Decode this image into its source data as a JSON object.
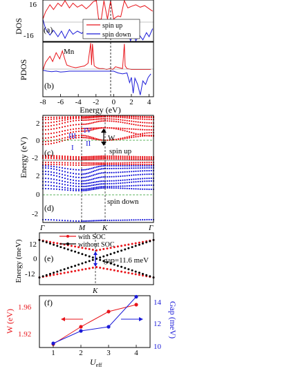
{
  "colors": {
    "red": "#e8141a",
    "blue": "#1a1ad8",
    "black": "#000000",
    "green": "#2a9a2a"
  },
  "panels": {
    "a": {
      "label": "(a)",
      "ylabel": "DOS",
      "ytick_top": "16",
      "ytick_bottom": "-16",
      "legend": [
        "spin up",
        "spin down"
      ]
    },
    "b": {
      "label": "(b)",
      "ylabel": "PDOS",
      "annotation": "Mn",
      "xlabel": "Energy (eV)",
      "xticks": [
        "-8",
        "-6",
        "-4",
        "-2",
        "0",
        "2",
        "4"
      ]
    },
    "c": {
      "label": "(c)",
      "spin_label": "spin up",
      "yticks": [
        "2",
        "0",
        "-2"
      ],
      "roman": [
        "IV",
        "III",
        "II",
        "I"
      ],
      "width_label": "W"
    },
    "d": {
      "label": "(d)",
      "spin_label": "spin down",
      "yticks": [
        "2",
        "0",
        "-2"
      ]
    },
    "cd": {
      "ylabel": "Energy (eV)",
      "kpoints": [
        "Γ",
        "M",
        "K",
        "Γ"
      ]
    },
    "e": {
      "label": "(e)",
      "ylabel": "Energy (meV)",
      "yticks": [
        "12",
        "0",
        "-12"
      ],
      "legend": [
        "with SOC",
        "without SOC"
      ],
      "gap_label": "gap=11.6 meV",
      "kpoint": "K"
    },
    "f": {
      "label": "(f)",
      "ylabel_left": "W (eV)",
      "ylabel_right": "Gap (meV)",
      "xlabel_main": "U",
      "xlabel_sub": "eff",
      "yticks_left": [
        "1.96",
        "1.92"
      ],
      "yticks_right": [
        "14",
        "12",
        "10"
      ],
      "xticks": [
        "1",
        "2",
        "3",
        "4"
      ]
    }
  },
  "chart_data": [
    {
      "type": "line",
      "panel": "a",
      "title": "",
      "xlim": [
        -8,
        4.5
      ],
      "ylim": [
        -28,
        24
      ],
      "series": [
        {
          "name": "spin up",
          "x": [
            -8,
            -7.7,
            -7.2,
            -6.8,
            -6.3,
            -5.9,
            -5.5,
            -5.0,
            -4.6,
            -4.1,
            -3.6,
            -3.1,
            -2.7,
            -2.3,
            -1.95,
            -1.7,
            -1.4,
            -1.1,
            -0.7,
            -0.35,
            -0.1,
            0,
            0.2,
            0.5,
            0.8,
            1.2,
            1.6,
            2.0,
            2.5,
            3.0,
            3.5,
            4.0,
            4.4
          ],
          "y": [
            0,
            9,
            18,
            12,
            20,
            16,
            24,
            14,
            20,
            15,
            18,
            13,
            17,
            22,
            30,
            0,
            0,
            30,
            0,
            30,
            6,
            0,
            2,
            4,
            3,
            30,
            14,
            16,
            18,
            15,
            17,
            13,
            10
          ]
        },
        {
          "name": "spin down",
          "x": [
            -8,
            -7.7,
            -7.2,
            -6.8,
            -6.3,
            -5.9,
            -5.5,
            -5.0,
            -4.6,
            -4.1,
            -3.6,
            -3.1,
            -2.7,
            -2.3,
            -2.0,
            -1.6,
            -1.0,
            -0.4,
            0,
            0.4,
            0.9,
            1.3,
            1.6,
            1.9,
            2.2,
            2.5,
            2.9,
            3.3,
            3.7,
            4.0,
            4.4
          ],
          "y": [
            0,
            -12,
            -20,
            -14,
            -22,
            -15,
            -24,
            -13,
            -19,
            -15,
            -18,
            -12,
            -17,
            -8,
            -4,
            -4,
            -4,
            -4,
            -4,
            -4,
            -4,
            -4,
            -16,
            -30,
            -18,
            -28,
            -20,
            -26,
            -17,
            -22,
            -12
          ]
        }
      ]
    },
    {
      "type": "line",
      "panel": "b",
      "title": "",
      "xlim": [
        -8,
        4.5
      ],
      "ylim": [
        -3,
        3.2
      ],
      "series": [
        {
          "name": "spin up",
          "x": [
            -8,
            -7.7,
            -7.2,
            -6.9,
            -6.5,
            -6.1,
            -5.8,
            -5.5,
            -5.3,
            -4.8,
            -4.3,
            -3.8,
            -3.3,
            -2.9,
            -2.6,
            -2.5,
            -2.4,
            -2.2,
            -1.9,
            -1.6,
            -1.2,
            -0.8,
            -0.4,
            -0.1,
            0.2,
            0.6,
            1.0,
            1.2,
            1.3,
            1.5,
            2.0,
            2.6,
            3.2,
            3.7,
            4.2
          ],
          "y": [
            0,
            0.9,
            1.6,
            1.0,
            2.0,
            1.3,
            2.2,
            1.2,
            0.6,
            0.4,
            0.3,
            0.4,
            0.5,
            0.8,
            3.1,
            0.6,
            3.0,
            0.5,
            0.3,
            0.2,
            0.2,
            0.1,
            0.2,
            0.1,
            0.4,
            0.3,
            0.2,
            3.0,
            0.5,
            0.2,
            0.1,
            0.1,
            0.1,
            0.1,
            0.1
          ]
        },
        {
          "name": "spin down",
          "x": [
            -8,
            -7.5,
            -7.0,
            -6.5,
            -6.0,
            -5.5,
            -5.0,
            -4.5,
            -4.0,
            -3.5,
            -3.0,
            -2.5,
            -2.0,
            -1.5,
            -1.0,
            -0.5,
            0,
            0.5,
            1.0,
            1.5,
            1.8,
            2.0,
            2.2,
            2.4,
            2.7,
            3.0,
            3.3,
            3.6,
            3.9,
            4.2
          ],
          "y": [
            0,
            -0.1,
            -0.15,
            -0.1,
            -0.2,
            -0.15,
            -0.1,
            -0.1,
            -0.1,
            -0.1,
            -0.1,
            -0.1,
            -0.1,
            -0.1,
            -0.1,
            -0.1,
            -0.1,
            -0.3,
            -0.4,
            -0.3,
            -1.4,
            -0.8,
            -2.6,
            -0.9,
            -1.6,
            -2.8,
            -1.2,
            -1.6,
            -0.8,
            -0.4
          ]
        }
      ]
    },
    {
      "type": "line",
      "panel": "c",
      "title": "",
      "xlabel": "",
      "ylabel": "Energy (eV)",
      "ylim": [
        -0.6,
        2.9
      ],
      "series": [
        {
          "name": "I",
          "x": [
            0,
            0.45,
            0.68,
            1.0
          ],
          "y": [
            0.05,
            0.55,
            0.0,
            0.6
          ]
        },
        {
          "name": "II",
          "x": [
            0,
            0.45,
            0.68,
            1.0
          ],
          "y": [
            0.3,
            0.7,
            0.0,
            0.8
          ]
        },
        {
          "name": "III",
          "x": [
            0,
            0.45,
            0.68,
            1.0
          ],
          "y": [
            0.85,
            0.7,
            1.2,
            0.9
          ]
        },
        {
          "name": "IV",
          "x": [
            0,
            0.45,
            0.68,
            1.0
          ],
          "y": [
            1.1,
            0.95,
            1.2,
            1.0
          ]
        }
      ]
    },
    {
      "type": "line",
      "panel": "e",
      "title": "",
      "xlabel": "",
      "ylabel": "Energy (meV)",
      "ylim": [
        -18,
        18
      ],
      "series": [
        {
          "name": "with SOC",
          "x": [
            -1,
            0,
            1
          ],
          "y": [
            -13,
            -5.8,
            -13
          ]
        },
        {
          "name": "with SOC",
          "x": [
            -1,
            0,
            1
          ],
          "y": [
            13,
            5.8,
            13
          ]
        },
        {
          "name": "without SOC",
          "x": [
            -1,
            0,
            1
          ],
          "y": [
            13,
            0,
            -13
          ]
        },
        {
          "name": "without SOC",
          "x": [
            -1,
            0,
            1
          ],
          "y": [
            -13,
            0,
            13
          ]
        }
      ]
    },
    {
      "type": "line",
      "panel": "f",
      "title": "",
      "xlabel": "Ueff",
      "ylabel": "W (eV)",
      "categories": [
        1,
        2,
        3,
        4
      ],
      "ylim": [
        1.9,
        1.975
      ],
      "y2lim": [
        10,
        15
      ],
      "series": [
        {
          "name": "W",
          "axis": "left",
          "values": [
            1.905,
            1.93,
            1.952,
            1.962
          ]
        },
        {
          "name": "Gap",
          "axis": "right",
          "values": [
            10.4,
            11.6,
            12.0,
            14.9
          ]
        }
      ]
    }
  ]
}
